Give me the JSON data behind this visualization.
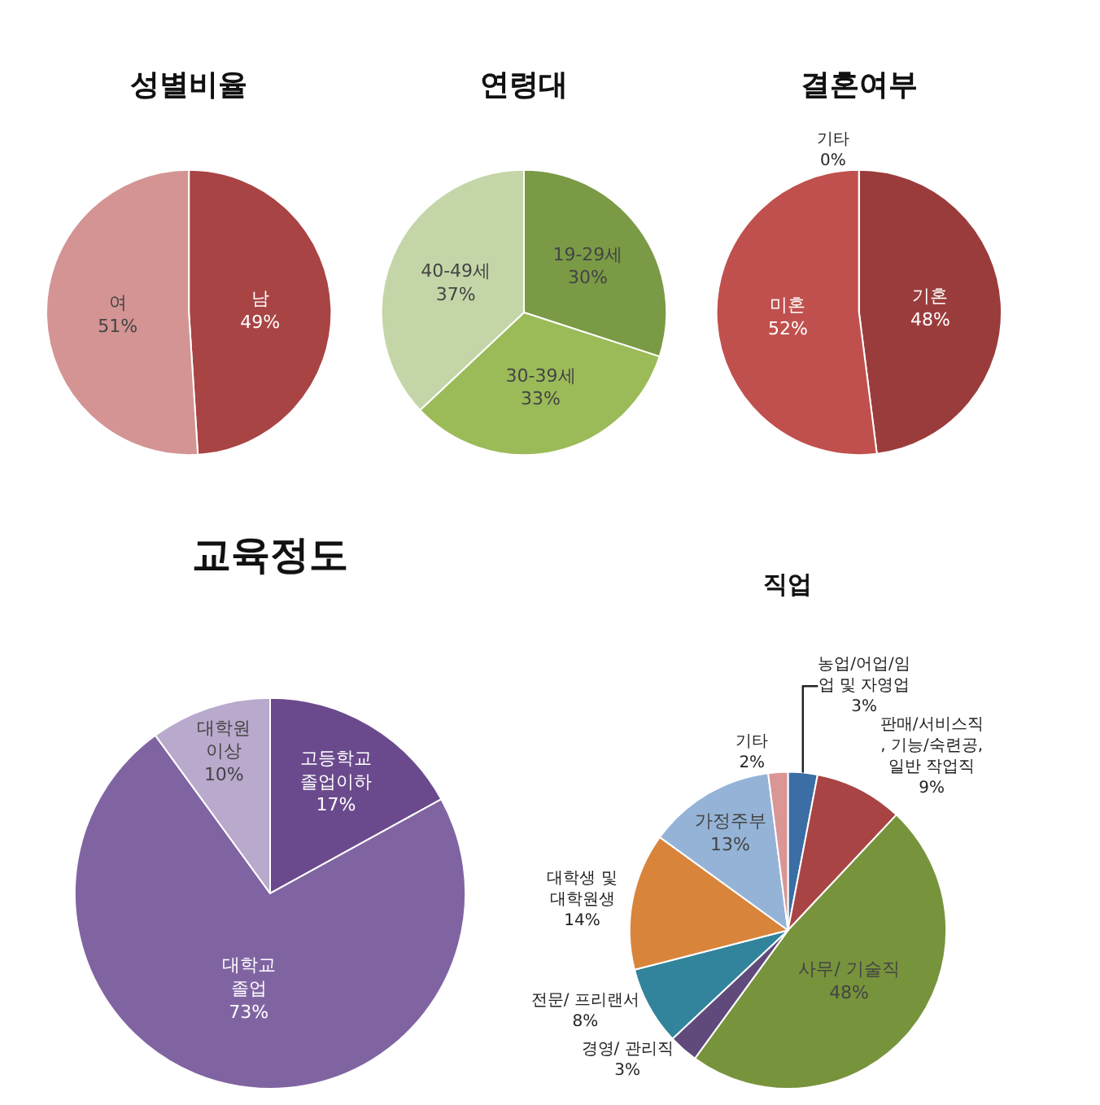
{
  "chart_data": [
    {
      "type": "pie",
      "title": "성별비율",
      "categories": [
        "남",
        "여"
      ],
      "values": [
        49,
        51
      ],
      "value_labels": [
        "49%",
        "51%"
      ],
      "colors": [
        "#a94444",
        "#d49494"
      ]
    },
    {
      "type": "pie",
      "title": "연령대",
      "categories": [
        "19-29세",
        "30-39세",
        "40-49세"
      ],
      "values": [
        30,
        33,
        37
      ],
      "value_labels": [
        "30%",
        "33%",
        "37%"
      ],
      "colors": [
        "#7a9a45",
        "#9bbb59",
        "#c4d6a8"
      ]
    },
    {
      "type": "pie",
      "title": "결혼여부",
      "categories": [
        "기혼",
        "미혼",
        "기타"
      ],
      "values": [
        48,
        52,
        0
      ],
      "value_labels": [
        "48%",
        "52%",
        "0%"
      ],
      "colors": [
        "#9b3c3c",
        "#c0504d",
        "#e6b9b8"
      ]
    },
    {
      "type": "pie",
      "title": "교육정도",
      "categories": [
        "고등학교\n졸업이하",
        "대학교\n졸업",
        "대학원\n이상"
      ],
      "values": [
        17,
        73,
        10
      ],
      "value_labels": [
        "17%",
        "73%",
        "10%"
      ],
      "colors": [
        "#6a4a8c",
        "#8064a2",
        "#b9a9cc"
      ]
    },
    {
      "type": "pie",
      "title": "직업",
      "categories": [
        "농업/어업/임\n업 및 자영업",
        "판매/서비스직\n, 기능/숙련공,\n일반 작업직",
        "사무/ 기술직",
        "경영/ 관리직",
        "전문/ 프리랜서",
        "대학생 및\n대학원생",
        "가정주부",
        "기타"
      ],
      "values": [
        3,
        9,
        48,
        3,
        8,
        14,
        13,
        2
      ],
      "value_labels": [
        "3%",
        "9%",
        "48%",
        "3%",
        "8%",
        "14%",
        "13%",
        "2%"
      ],
      "colors": [
        "#3a6ea5",
        "#a94444",
        "#77933c",
        "#604a7b",
        "#31849b",
        "#d9843b",
        "#95b3d7",
        "#d99694"
      ]
    }
  ]
}
